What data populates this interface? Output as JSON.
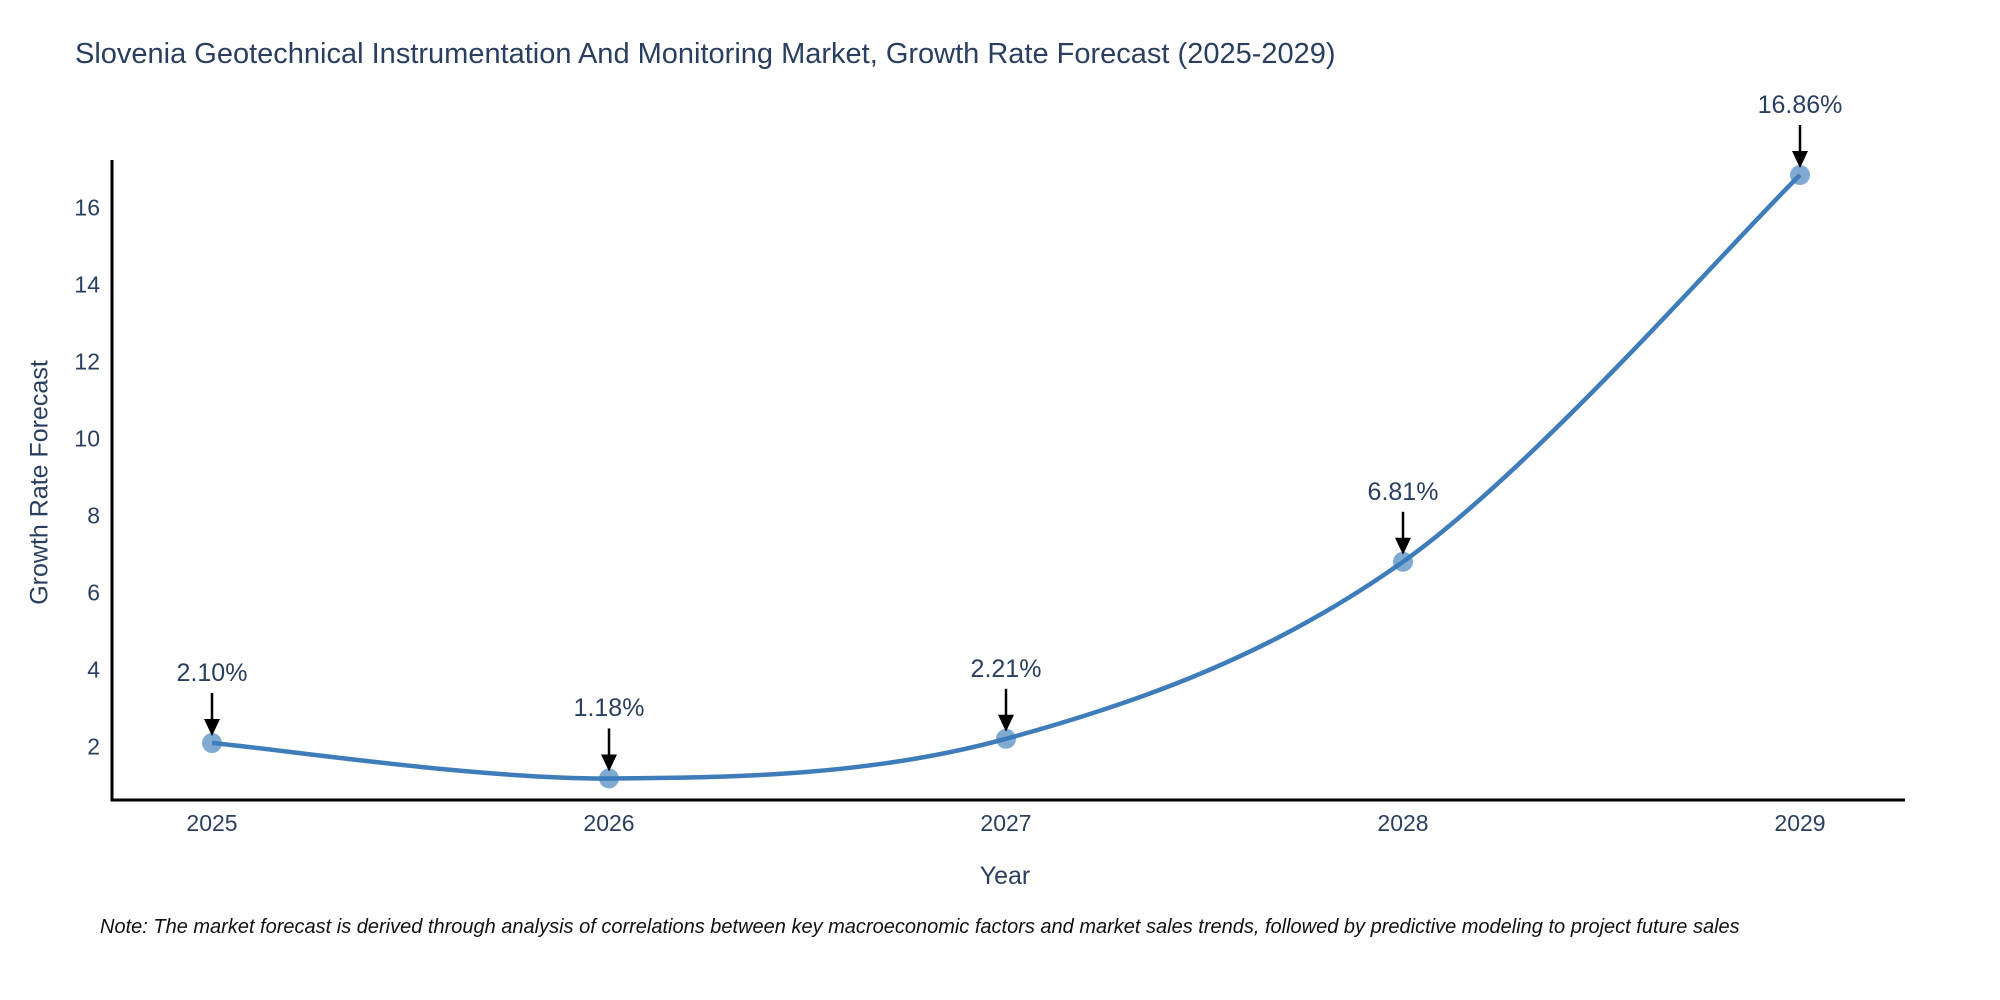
{
  "title": "Slovenia Geotechnical Instrumentation And Monitoring Market, Growth Rate Forecast (2025-2029)",
  "note": "Note: The market forecast is derived through analysis of correlations between key macroeconomic factors and market sales trends, followed by predictive modeling to project future sales",
  "chart_data": {
    "type": "line",
    "title": "Slovenia Geotechnical Instrumentation And Monitoring Market, Growth Rate Forecast (2025-2029)",
    "xlabel": "Year",
    "ylabel": "Growth Rate Forecast",
    "categories": [
      "2025",
      "2026",
      "2027",
      "2028",
      "2029"
    ],
    "values": [
      2.1,
      1.18,
      2.21,
      6.81,
      16.86
    ],
    "point_labels": [
      "2.10%",
      "1.18%",
      "2.21%",
      "6.81%",
      "16.86%"
    ],
    "yticks": [
      2,
      4,
      6,
      8,
      10,
      12,
      14,
      16
    ],
    "ylim": [
      0.62,
      17.25
    ],
    "grid": false,
    "legend": "none",
    "line_shape": "spline",
    "colors": {
      "line": "#3e7dba",
      "marker": "#3e7dba",
      "spine": "#000000",
      "arrow": "#000000",
      "text": "#2a3f5f",
      "background": "#ffffff"
    }
  }
}
